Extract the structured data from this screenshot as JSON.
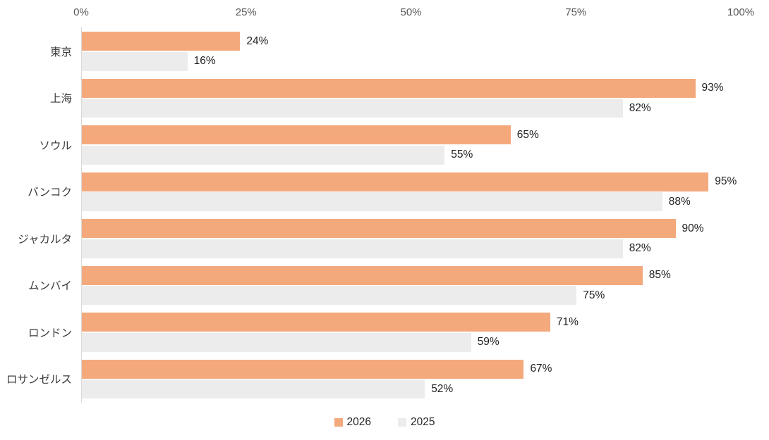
{
  "chart_data": {
    "type": "bar",
    "orientation": "horizontal",
    "title": "",
    "categories": [
      "東京",
      "上海",
      "ソウル",
      "バンコク",
      "ジャカルタ",
      "ムンバイ",
      "ロンドン",
      "ロサンゼルス"
    ],
    "series": [
      {
        "name": "2026",
        "color": "#F3A97C",
        "values": [
          24,
          93,
          65,
          95,
          90,
          85,
          71,
          67
        ],
        "labels": [
          "24%",
          "93%",
          "65%",
          "95%",
          "90%",
          "85%",
          "71%",
          "67%"
        ]
      },
      {
        "name": "2025",
        "color": "#ECECEC",
        "values": [
          16,
          82,
          55,
          88,
          82,
          75,
          59,
          52
        ],
        "labels": [
          "16%",
          "82%",
          "55%",
          "88%",
          "82%",
          "75%",
          "59%",
          "52%"
        ]
      }
    ],
    "x_axis": {
      "position": "top",
      "min": 0,
      "max": 100,
      "tick_values": [
        0,
        25,
        50,
        75,
        100
      ],
      "tick_labels": [
        "0%",
        "25%",
        "50%",
        "75%",
        "100%"
      ]
    },
    "legend": {
      "position": "bottom",
      "entries": [
        {
          "label": "2026",
          "color": "#F3A97C"
        },
        {
          "label": "2025",
          "color": "#ECECEC"
        }
      ]
    },
    "grid": false,
    "axis_line_color": "#D9D9D9",
    "tick_text_color": "#595959",
    "category_text_color": "#3B3B3B",
    "value_text_color": "#1F1F1F"
  }
}
